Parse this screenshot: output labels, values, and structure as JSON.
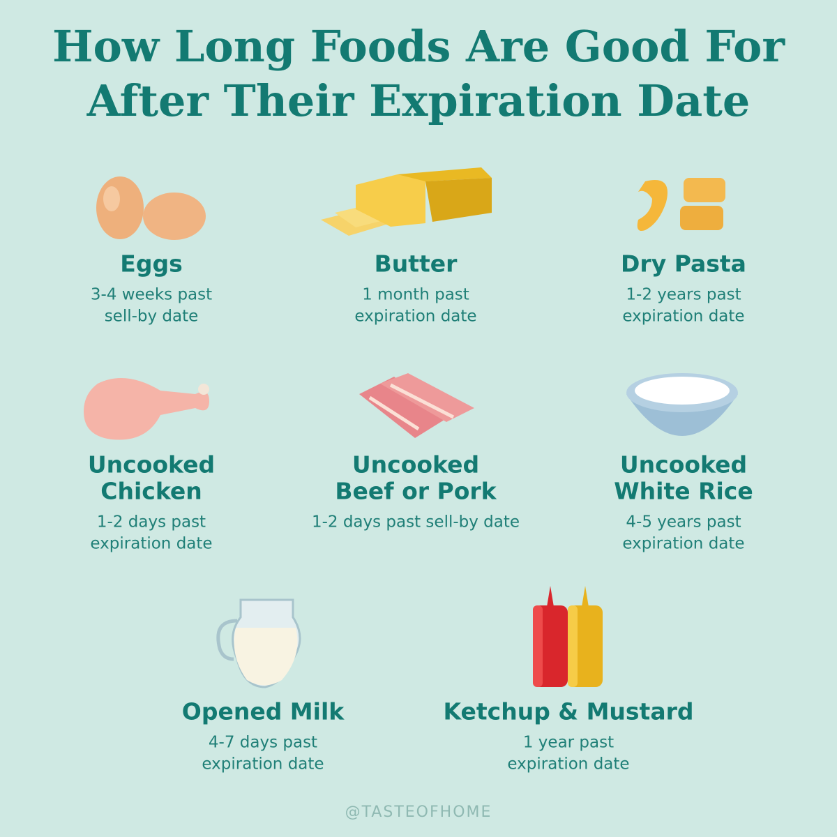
{
  "title": [
    "How Long Foods Are Good For",
    "After Their Expiration Date"
  ],
  "items": [
    {
      "name": [
        "Eggs"
      ],
      "description": [
        "3-4 weeks past",
        "sell-by date"
      ]
    },
    {
      "name": [
        "Butter"
      ],
      "description": [
        "1 month past",
        "expiration date"
      ]
    },
    {
      "name": [
        "Dry Pasta"
      ],
      "description": [
        "1-2 years past",
        "expiration date"
      ]
    },
    {
      "name": [
        "Uncooked",
        "Chicken"
      ],
      "description": [
        "1-2 days past",
        "expiration date"
      ]
    },
    {
      "name": [
        "Uncooked",
        "Beef or Pork"
      ],
      "description": [
        "1-2 days past sell-by date"
      ]
    },
    {
      "name": [
        "Uncooked",
        "White Rice"
      ],
      "description": [
        "4-5 years past",
        "expiration date"
      ]
    },
    {
      "name": [
        "Opened Milk"
      ],
      "description": [
        "4-7 days past",
        "expiration date"
      ]
    },
    {
      "name": [
        "Ketchup & Mustard"
      ],
      "description": [
        "1 year past",
        "expiration date"
      ]
    }
  ],
  "footer": "@TASTEOFHOME"
}
